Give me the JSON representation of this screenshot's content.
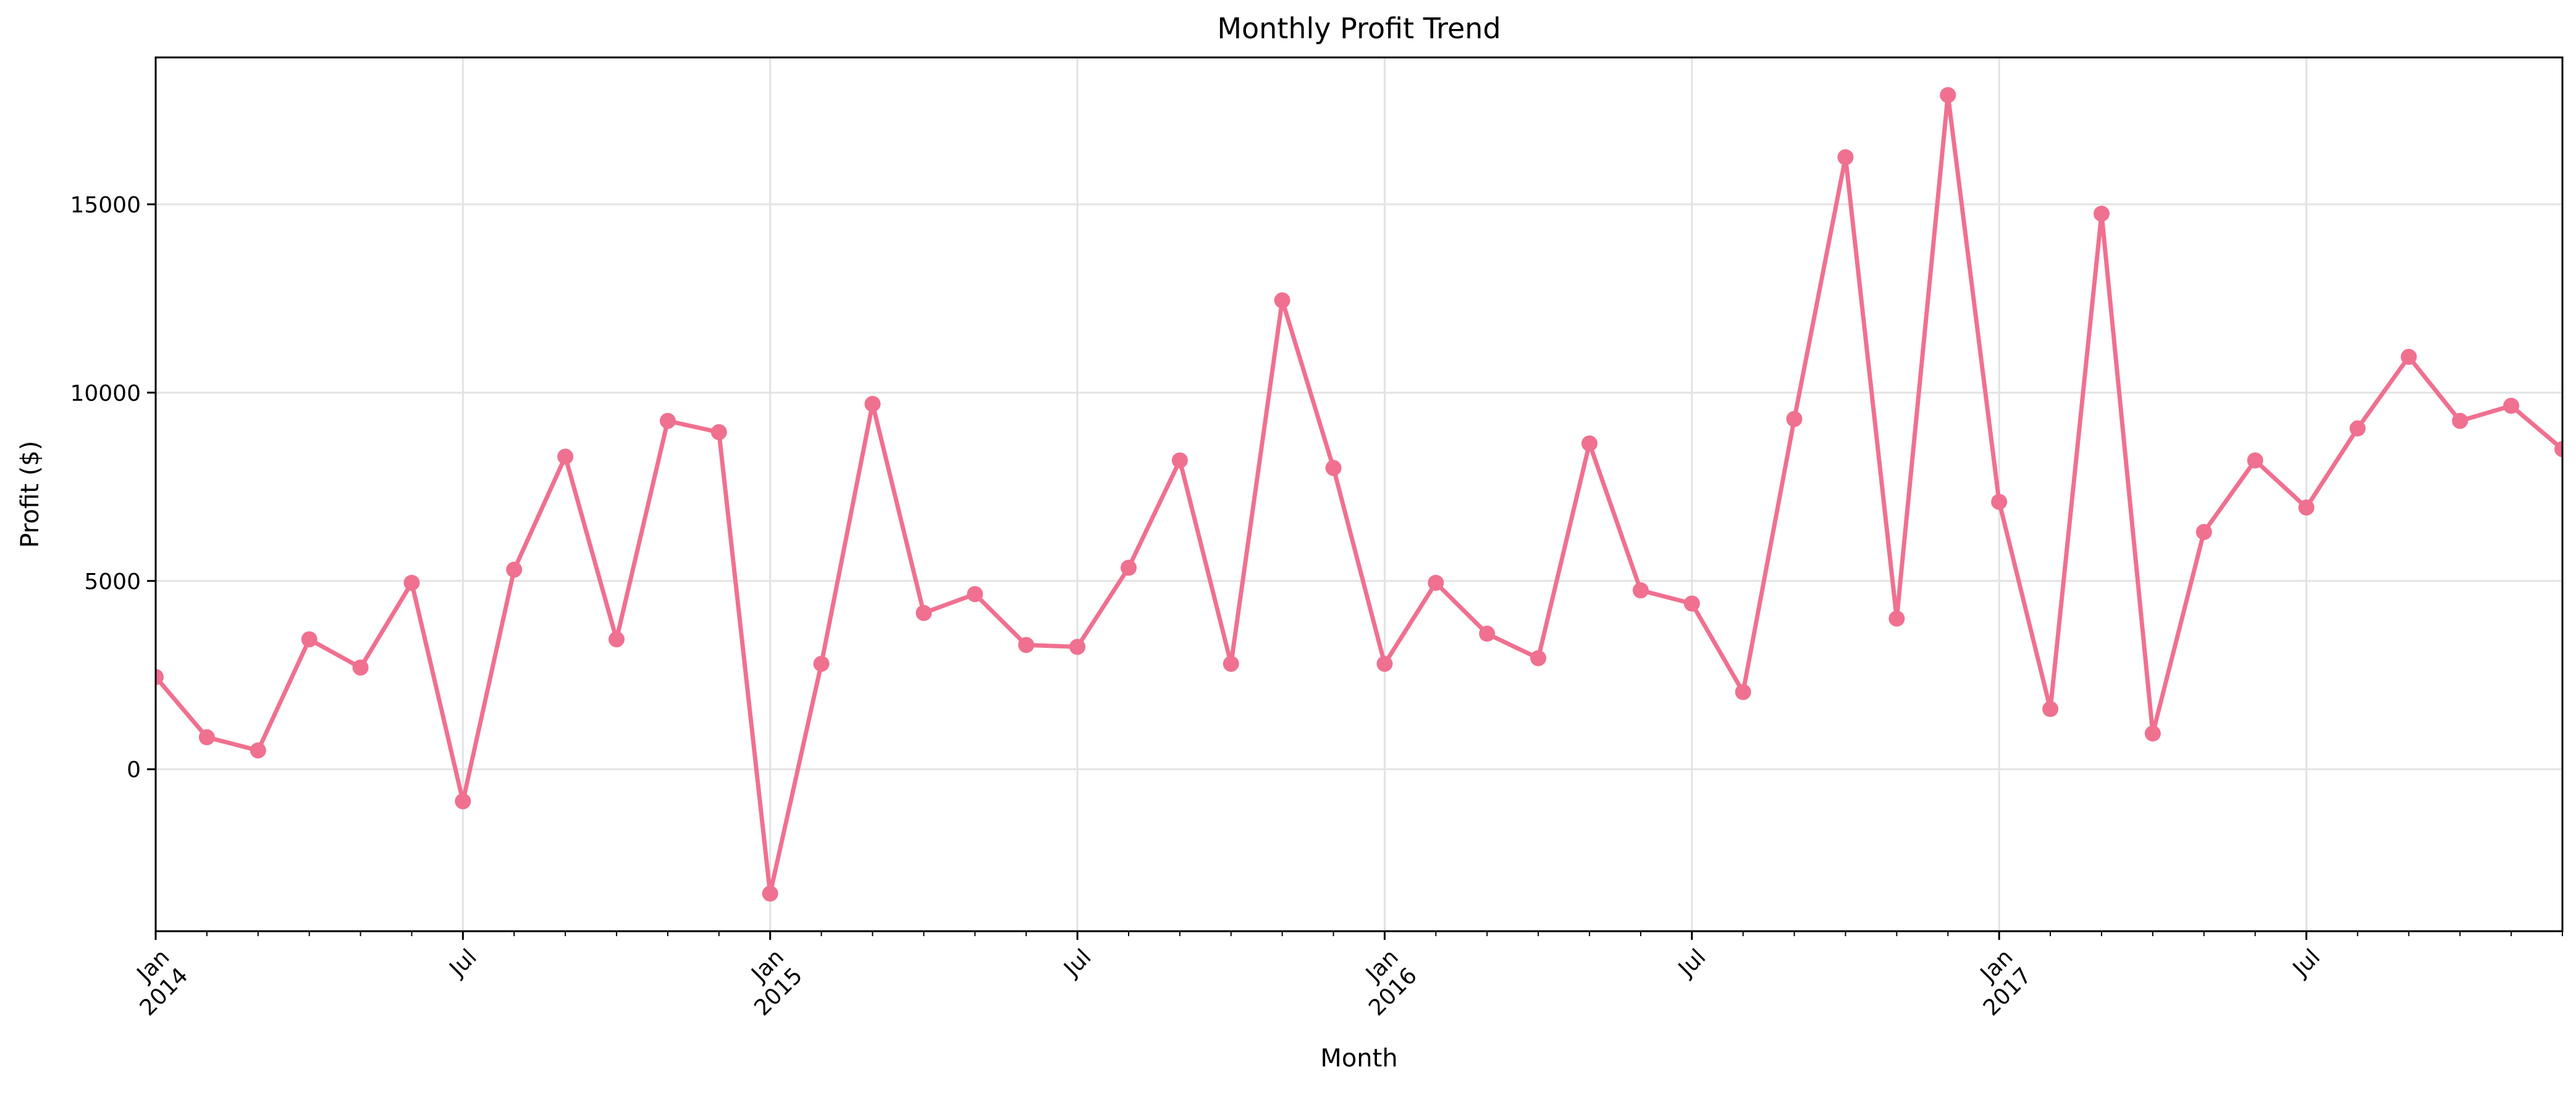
{
  "chart_data": {
    "type": "line",
    "title": "Monthly Profit Trend",
    "xlabel": "Month",
    "ylabel": "Profit ($)",
    "x_axis": {
      "type": "date",
      "range": [
        "2014-01",
        "2017-12"
      ],
      "major_ticks": [
        {
          "date": "2014-01",
          "label": "Jan",
          "sublabel": "2014"
        },
        {
          "date": "2014-07",
          "label": "Jul",
          "sublabel": ""
        },
        {
          "date": "2015-01",
          "label": "Jan",
          "sublabel": "2015"
        },
        {
          "date": "2015-07",
          "label": "Jul",
          "sublabel": ""
        },
        {
          "date": "2016-01",
          "label": "Jan",
          "sublabel": "2016"
        },
        {
          "date": "2016-07",
          "label": "Jul",
          "sublabel": ""
        },
        {
          "date": "2017-01",
          "label": "Jan",
          "sublabel": "2017"
        },
        {
          "date": "2017-07",
          "label": "Jul",
          "sublabel": ""
        }
      ],
      "tick_label_rotation_deg": 45
    },
    "y_axis": {
      "range": [
        -4300,
        18900
      ],
      "ticks": [
        0,
        5000,
        10000,
        15000
      ]
    },
    "grid": true,
    "series": [
      {
        "color": "#f07090",
        "marker": "circle",
        "x": [
          "2014-01",
          "2014-02",
          "2014-03",
          "2014-04",
          "2014-05",
          "2014-06",
          "2014-07",
          "2014-08",
          "2014-09",
          "2014-10",
          "2014-11",
          "2014-12",
          "2015-01",
          "2015-02",
          "2015-03",
          "2015-04",
          "2015-05",
          "2015-06",
          "2015-07",
          "2015-08",
          "2015-09",
          "2015-10",
          "2015-11",
          "2015-12",
          "2016-01",
          "2016-02",
          "2016-03",
          "2016-04",
          "2016-05",
          "2016-06",
          "2016-07",
          "2016-08",
          "2016-09",
          "2016-10",
          "2016-11",
          "2016-12",
          "2017-01",
          "2017-02",
          "2017-03",
          "2017-04",
          "2017-05",
          "2017-06",
          "2017-07",
          "2017-08",
          "2017-09",
          "2017-10",
          "2017-11",
          "2017-12"
        ],
        "values": [
          2450,
          850,
          500,
          3450,
          2700,
          4950,
          -850,
          5300,
          8300,
          3450,
          9250,
          8950,
          -3300,
          2800,
          9700,
          4150,
          4650,
          3300,
          3250,
          5350,
          8200,
          2800,
          12450,
          8000,
          2800,
          4950,
          3600,
          2950,
          8650,
          4750,
          4400,
          2050,
          9300,
          16250,
          4000,
          17900,
          7100,
          1600,
          14750,
          950,
          6300,
          8200,
          6950,
          9050,
          10950,
          9250,
          9650,
          8500
        ]
      }
    ]
  }
}
